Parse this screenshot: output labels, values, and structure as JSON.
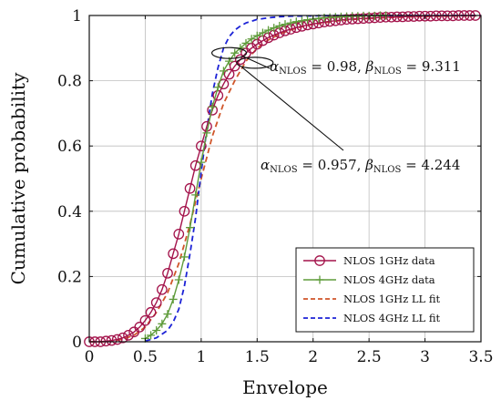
{
  "chart_data": {
    "type": "line",
    "xlabel": "Envelope",
    "ylabel": "Cumulative probability",
    "xlim": [
      0,
      3.5
    ],
    "ylim": [
      0,
      1
    ],
    "xticks": [
      0,
      0.5,
      1,
      1.5,
      2,
      2.5,
      3,
      3.5
    ],
    "xtick_labels": [
      "0",
      "0.5",
      "1",
      "1.5",
      "2",
      "2.5",
      "3",
      "3.5"
    ],
    "yticks": [
      0,
      0.2,
      0.4,
      0.6,
      0.8,
      1
    ],
    "ytick_labels": [
      "0",
      "0.2",
      "0.4",
      "0.6",
      "0.8",
      "1"
    ],
    "grid": true,
    "legend_position": "bottom-right",
    "series": [
      {
        "name": "NLOS 1GHz data",
        "style": "line-markers",
        "marker": "circle",
        "color": "#a3124a",
        "x": [
          0.0,
          0.05,
          0.1,
          0.15,
          0.2,
          0.25,
          0.3,
          0.35,
          0.4,
          0.45,
          0.5,
          0.55,
          0.6,
          0.65,
          0.7,
          0.75,
          0.8,
          0.85,
          0.9,
          0.95,
          1.0,
          1.05,
          1.1,
          1.15,
          1.2,
          1.25,
          1.3,
          1.35,
          1.4,
          1.45,
          1.5,
          1.55,
          1.6,
          1.65,
          1.7,
          1.75,
          1.8,
          1.85,
          1.9,
          1.95,
          2.0,
          2.05,
          2.1,
          2.15,
          2.2,
          2.25,
          2.3,
          2.35,
          2.4,
          2.45,
          2.5,
          2.55,
          2.6,
          2.65,
          2.7,
          2.75,
          2.8,
          2.85,
          2.9,
          2.95,
          3.0,
          3.05,
          3.1,
          3.15,
          3.2,
          3.25,
          3.3,
          3.35,
          3.4,
          3.45
        ],
        "y": [
          0.0,
          0.0,
          0.0,
          0.002,
          0.004,
          0.007,
          0.012,
          0.02,
          0.03,
          0.045,
          0.065,
          0.09,
          0.12,
          0.16,
          0.21,
          0.27,
          0.33,
          0.4,
          0.47,
          0.54,
          0.6,
          0.66,
          0.71,
          0.755,
          0.79,
          0.82,
          0.845,
          0.865,
          0.885,
          0.9,
          0.912,
          0.923,
          0.932,
          0.94,
          0.947,
          0.953,
          0.958,
          0.963,
          0.967,
          0.971,
          0.974,
          0.977,
          0.98,
          0.982,
          0.984,
          0.986,
          0.988,
          0.989,
          0.99,
          0.991,
          0.992,
          0.993,
          0.994,
          0.995,
          0.995,
          0.996,
          0.996,
          0.997,
          0.997,
          0.998,
          0.998,
          0.998,
          0.999,
          0.999,
          0.999,
          0.999,
          1.0,
          1.0,
          1.0,
          1.0
        ]
      },
      {
        "name": "NLOS 4GHz data",
        "style": "line-markers",
        "marker": "plus",
        "color": "#5e9b3a",
        "x": [
          0.5,
          0.55,
          0.6,
          0.65,
          0.7,
          0.75,
          0.8,
          0.85,
          0.9,
          0.95,
          1.0,
          1.05,
          1.1,
          1.15,
          1.2,
          1.25,
          1.3,
          1.35,
          1.4,
          1.45,
          1.5,
          1.55,
          1.6,
          1.65,
          1.7,
          1.75,
          1.8,
          1.85,
          1.9,
          1.95,
          2.0,
          2.05,
          2.1,
          2.15,
          2.2,
          2.25,
          2.3,
          2.35,
          2.4,
          2.45,
          2.5,
          2.55,
          2.6,
          2.65
        ],
        "y": [
          0.01,
          0.02,
          0.035,
          0.055,
          0.085,
          0.13,
          0.19,
          0.26,
          0.35,
          0.45,
          0.55,
          0.64,
          0.72,
          0.78,
          0.83,
          0.86,
          0.885,
          0.9,
          0.915,
          0.928,
          0.938,
          0.947,
          0.955,
          0.962,
          0.968,
          0.973,
          0.977,
          0.981,
          0.984,
          0.987,
          0.989,
          0.991,
          0.993,
          0.994,
          0.995,
          0.996,
          0.997,
          0.998,
          0.998,
          0.999,
          0.999,
          0.999,
          1.0,
          1.0
        ]
      },
      {
        "name": "NLOS 1GHz LL fit",
        "style": "dashed",
        "color": "#d0562a",
        "x": [
          0.0,
          0.1,
          0.2,
          0.3,
          0.4,
          0.5,
          0.6,
          0.7,
          0.8,
          0.9,
          1.0,
          1.1,
          1.2,
          1.3,
          1.4,
          1.5,
          1.6,
          1.7,
          1.8,
          1.9,
          2.0,
          2.2,
          2.4,
          2.6,
          2.8,
          3.0,
          3.2,
          3.4,
          3.5
        ],
        "y": [
          0.0,
          0.0,
          0.002,
          0.008,
          0.02,
          0.045,
          0.09,
          0.15,
          0.24,
          0.36,
          0.5,
          0.63,
          0.73,
          0.8,
          0.86,
          0.9,
          0.925,
          0.943,
          0.956,
          0.966,
          0.973,
          0.983,
          0.989,
          0.993,
          0.995,
          0.997,
          0.998,
          0.999,
          0.999
        ]
      },
      {
        "name": "NLOS 4GHz LL fit",
        "style": "dashed",
        "color": "#1c22d6",
        "x": [
          0.5,
          0.6,
          0.7,
          0.75,
          0.8,
          0.85,
          0.9,
          0.95,
          1.0,
          1.05,
          1.1,
          1.15,
          1.2,
          1.25,
          1.3,
          1.35,
          1.4,
          1.5,
          1.6,
          1.7,
          1.8,
          2.0,
          2.2,
          2.4,
          2.6,
          3.0,
          3.5
        ],
        "y": [
          0.002,
          0.012,
          0.035,
          0.06,
          0.1,
          0.17,
          0.27,
          0.38,
          0.52,
          0.65,
          0.76,
          0.84,
          0.9,
          0.935,
          0.955,
          0.968,
          0.977,
          0.988,
          0.993,
          0.996,
          0.998,
          0.999,
          1.0,
          1.0,
          1.0,
          1.0,
          1.0
        ]
      }
    ],
    "annotations": [
      {
        "alpha_label": "α",
        "alpha_sub": "NLOS",
        "alpha_value": "0.98",
        "beta_label": "β",
        "beta_sub": "NLOS",
        "beta_value": "9.311"
      },
      {
        "alpha_label": "α",
        "alpha_sub": "NLOS",
        "alpha_value": "0.957",
        "beta_label": "β",
        "beta_sub": "NLOS",
        "beta_value": "4.244"
      }
    ]
  }
}
